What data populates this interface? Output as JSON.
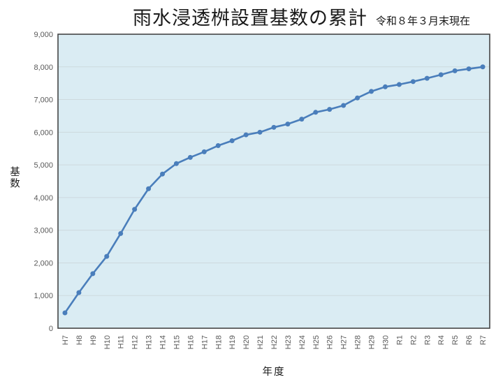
{
  "header": {
    "title": "雨水浸透桝設置基数の累計",
    "subtitle": "令和８年３月末現在"
  },
  "chart_data": {
    "type": "line",
    "title": "雨水浸透桝設置基数の累計",
    "subtitle": "令和８年３月末現在",
    "categories": [
      "H7",
      "H8",
      "H9",
      "H10",
      "H11",
      "H12",
      "H13",
      "H14",
      "H15",
      "H16",
      "H17",
      "H18",
      "H19",
      "H20",
      "H21",
      "H22",
      "H23",
      "H24",
      "H25",
      "H26",
      "H27",
      "H28",
      "H29",
      "H30",
      "R1",
      "R2",
      "R3",
      "R4",
      "R5",
      "R6",
      "R7"
    ],
    "values": [
      470,
      1090,
      1670,
      2200,
      2900,
      3640,
      4270,
      4720,
      5040,
      5230,
      5400,
      5590,
      5740,
      5920,
      6000,
      6150,
      6250,
      6400,
      6610,
      6700,
      6820,
      7050,
      7250,
      7390,
      7460,
      7550,
      7650,
      7760,
      7880,
      7940,
      8000
    ],
    "xlabel": "年度",
    "ylabel": "基数",
    "ylim": [
      0,
      9000
    ],
    "ytick_step": 1000,
    "grid": true,
    "legend": false,
    "colors": {
      "series": "#4a7ebb",
      "plot_bg": "#daecf3",
      "gridline": "#cdd9de",
      "axis_border": "#454545",
      "tick_text": "#595959",
      "title_text": "#1a1a1a"
    }
  }
}
